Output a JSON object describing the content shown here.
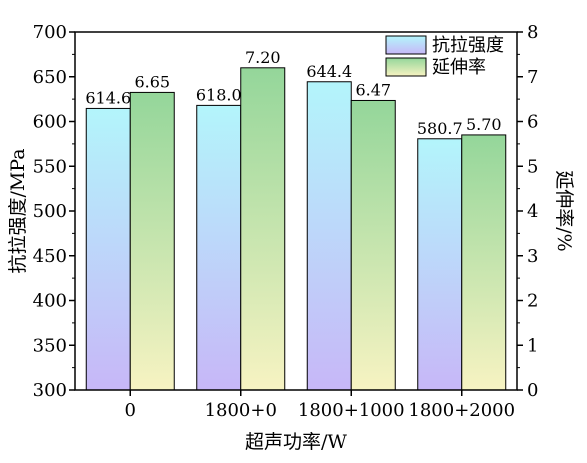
{
  "chart_data": {
    "type": "bar",
    "categories": [
      "0",
      "1800+0",
      "1800+1000",
      "1800+2000"
    ],
    "series": [
      {
        "name": "抗拉强度",
        "axis": "left",
        "values": [
          614.6,
          618.0,
          644.4,
          580.7
        ],
        "labels": [
          "614.6",
          "618.0",
          "644.4",
          "580.7"
        ],
        "gradient": [
          "#b3f5fb",
          "#c7b7f8"
        ]
      },
      {
        "name": "延伸率",
        "axis": "right",
        "values": [
          6.65,
          7.2,
          6.47,
          5.7
        ],
        "labels": [
          "6.65",
          "7.20",
          "6.47",
          "5.70"
        ],
        "gradient": [
          "#94d69a",
          "#f7f3c2"
        ]
      }
    ],
    "xlabel": "超声功率/W",
    "ylabel_left": "抗拉强度/MPa",
    "ylabel_right": "延伸率/%",
    "ylim_left": [
      300,
      700
    ],
    "yticks_left": [
      300,
      350,
      400,
      450,
      500,
      550,
      600,
      650,
      700
    ],
    "ylim_right": [
      0,
      8
    ],
    "yticks_right": [
      0,
      1,
      2,
      3,
      4,
      5,
      6,
      7,
      8
    ],
    "grid": false,
    "legend_position": "top-right"
  }
}
